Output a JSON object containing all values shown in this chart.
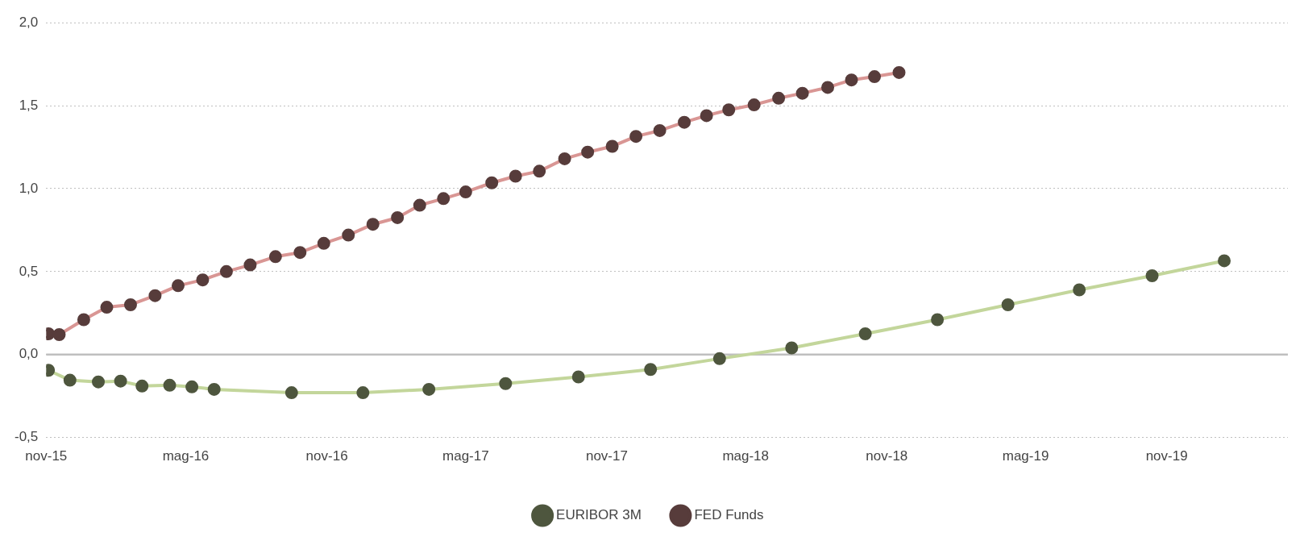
{
  "chart_data": {
    "type": "line",
    "marker": "circle",
    "legend": "bottom",
    "grid": "y",
    "xlim": [
      "2015-11-01",
      "2020-04-07"
    ],
    "xticks": [
      {
        "value": "2015-11-01",
        "label": "nov-15"
      },
      {
        "value": "2016-05-01",
        "label": "mag-16"
      },
      {
        "value": "2016-11-01",
        "label": "nov-16"
      },
      {
        "value": "2017-05-01",
        "label": "mag-17"
      },
      {
        "value": "2017-11-01",
        "label": "nov-17"
      },
      {
        "value": "2018-05-01",
        "label": "mag-18"
      },
      {
        "value": "2018-11-01",
        "label": "nov-18"
      },
      {
        "value": "2019-05-01",
        "label": "mag-19"
      },
      {
        "value": "2019-11-01",
        "label": "nov-19"
      }
    ],
    "ylim": [
      -0.5,
      2
    ],
    "yticks": [
      {
        "value": -0.5,
        "label": "-0,5"
      },
      {
        "value": 0,
        "label": "0,0"
      },
      {
        "value": 0.5,
        "label": "0,5"
      },
      {
        "value": 1,
        "label": "1,0"
      },
      {
        "value": 1.5,
        "label": "1,5"
      },
      {
        "value": 2,
        "label": "2,0"
      }
    ],
    "ref_lines": [
      {
        "axis": "y",
        "value": 0,
        "color": "#bfbfbf"
      }
    ],
    "series": [
      {
        "name": "EURIBOR 3M",
        "color": "#c3d69b",
        "x": [
          "2015-11-04",
          "2015-12-02",
          "2016-01-08",
          "2016-02-06",
          "2016-03-05",
          "2016-04-10",
          "2016-05-09",
          "2016-06-07",
          "2016-09-16",
          "2016-12-18",
          "2017-03-14",
          "2017-06-22",
          "2017-09-25",
          "2017-12-28",
          "2018-03-28",
          "2018-06-30",
          "2018-10-04",
          "2019-01-06",
          "2019-04-08",
          "2019-07-10",
          "2019-10-13",
          "2020-01-15"
        ],
        "values": [
          -0.095,
          -0.155,
          -0.165,
          -0.16,
          -0.19,
          -0.185,
          -0.195,
          -0.21,
          -0.23,
          -0.23,
          -0.21,
          -0.175,
          -0.135,
          -0.09,
          -0.025,
          0.04,
          0.125,
          0.21,
          0.3,
          0.39,
          0.475,
          0.565
        ]
      },
      {
        "name": "FED Funds",
        "color": "#d99694",
        "x": [
          "2015-11-04",
          "2015-11-18",
          "2015-12-20",
          "2016-01-19",
          "2016-02-19",
          "2016-03-22",
          "2016-04-21",
          "2016-05-23",
          "2016-06-23",
          "2016-07-24",
          "2016-08-26",
          "2016-09-27",
          "2016-10-28",
          "2016-11-29",
          "2016-12-31",
          "2017-02-01",
          "2017-03-02",
          "2017-04-02",
          "2017-05-01",
          "2017-06-04",
          "2017-07-05",
          "2017-08-05",
          "2017-09-07",
          "2017-10-07",
          "2017-11-08",
          "2017-12-09",
          "2018-01-09",
          "2018-02-10",
          "2018-03-11",
          "2018-04-09",
          "2018-05-12",
          "2018-06-13",
          "2018-07-14",
          "2018-08-16",
          "2018-09-16",
          "2018-10-16",
          "2018-11-17"
        ],
        "values": [
          0.125,
          0.12,
          0.21,
          0.285,
          0.3,
          0.355,
          0.415,
          0.45,
          0.5,
          0.54,
          0.59,
          0.615,
          0.67,
          0.72,
          0.785,
          0.825,
          0.9,
          0.94,
          0.98,
          1.035,
          1.075,
          1.105,
          1.18,
          1.22,
          1.255,
          1.315,
          1.35,
          1.4,
          1.44,
          1.475,
          1.505,
          1.545,
          1.575,
          1.61,
          1.655,
          1.675,
          1.7
        ]
      }
    ]
  }
}
